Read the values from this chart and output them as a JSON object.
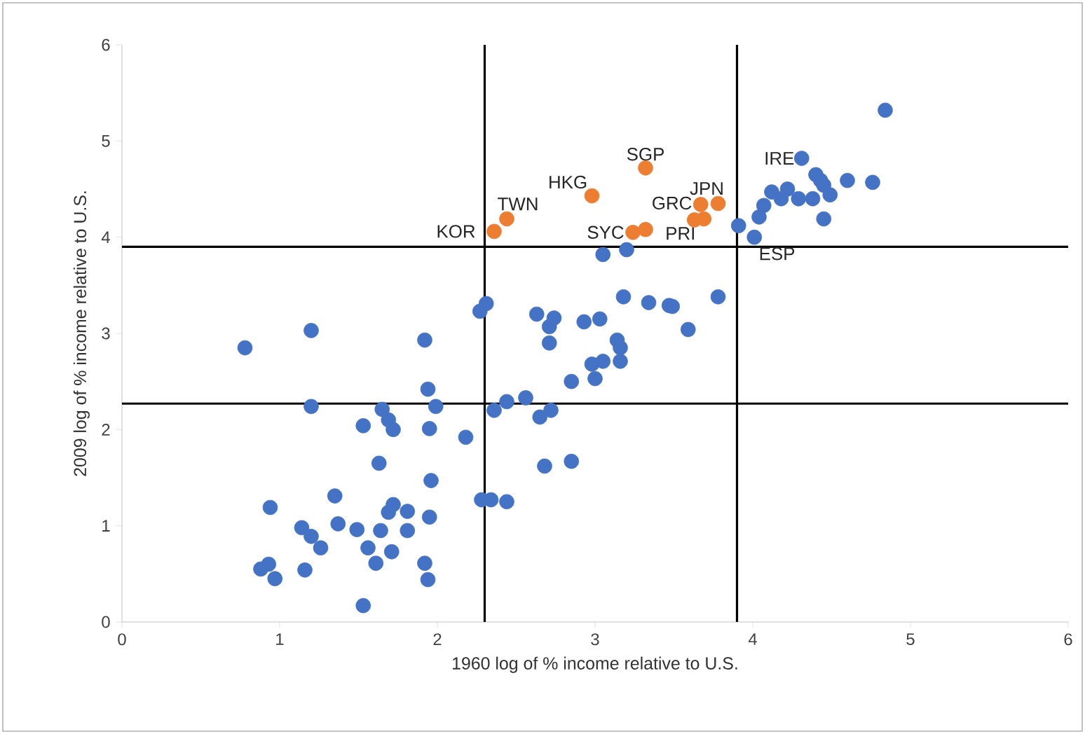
{
  "chart_data": {
    "type": "scatter",
    "xlabel": "1960 log of % income relative to U.S.",
    "ylabel": "2009 log of % income relative to U.S.",
    "xlim": [
      0,
      6
    ],
    "ylim": [
      0,
      6
    ],
    "xticks": [
      0,
      1,
      2,
      3,
      4,
      5,
      6
    ],
    "yticks": [
      0,
      1,
      2,
      3,
      4,
      5,
      6
    ],
    "marker": "circle",
    "series": [
      {
        "color": "#4472c4",
        "x": [
          4.84,
          4.31,
          4.4,
          4.43,
          4.45,
          4.49,
          4.6,
          4.76,
          4.12,
          4.22,
          4.18,
          4.07,
          4.04,
          3.91,
          4.01,
          4.45,
          4.29,
          4.38,
          3.05,
          3.2,
          3.18,
          3.34,
          3.47,
          3.49,
          3.78,
          3.59,
          2.27,
          2.31,
          2.63,
          2.74,
          2.71,
          2.71,
          2.93,
          3.03,
          3.14,
          3.16,
          3.16,
          2.98,
          3.05,
          3.0,
          2.85,
          2.44,
          2.36,
          2.56,
          2.65,
          2.72,
          2.68,
          2.85,
          2.18,
          2.28,
          2.34,
          2.44,
          0.78,
          1.2,
          1.92,
          1.94,
          1.99,
          1.2,
          1.65,
          1.53,
          1.69,
          1.72,
          1.95,
          1.63,
          1.96,
          0.94,
          1.35,
          1.37,
          1.14,
          1.2,
          1.26,
          1.49,
          1.64,
          1.72,
          1.69,
          1.81,
          1.95,
          1.81,
          1.56,
          1.71,
          1.61,
          1.92,
          1.94,
          1.16,
          0.88,
          0.93,
          0.97,
          1.53
        ],
        "values": [
          5.32,
          4.82,
          4.65,
          4.59,
          4.54,
          4.44,
          4.59,
          4.57,
          4.47,
          4.5,
          4.4,
          4.33,
          4.21,
          4.12,
          4.0,
          4.19,
          4.4,
          4.4,
          3.82,
          3.87,
          3.38,
          3.32,
          3.29,
          3.28,
          3.38,
          3.04,
          3.23,
          3.31,
          3.2,
          3.16,
          3.07,
          2.9,
          3.12,
          3.15,
          2.93,
          2.85,
          2.71,
          2.68,
          2.71,
          2.53,
          2.5,
          2.29,
          2.2,
          2.33,
          2.13,
          2.2,
          1.62,
          1.67,
          1.92,
          1.27,
          1.27,
          1.25,
          2.85,
          3.03,
          2.93,
          2.42,
          2.24,
          2.24,
          2.21,
          2.04,
          2.1,
          2.0,
          2.01,
          1.65,
          1.47,
          1.19,
          1.31,
          1.02,
          0.98,
          0.89,
          0.77,
          0.96,
          0.95,
          1.22,
          1.14,
          1.15,
          1.09,
          0.95,
          0.77,
          0.73,
          0.61,
          0.61,
          0.44,
          0.54,
          0.55,
          0.6,
          0.45,
          0.17
        ]
      },
      {
        "color": "#ed7d31",
        "x": [
          2.36,
          2.44,
          2.98,
          3.32,
          3.24,
          3.32,
          3.67,
          3.78,
          3.63,
          3.69
        ],
        "values": [
          4.06,
          4.19,
          4.43,
          4.72,
          4.05,
          4.08,
          4.34,
          4.35,
          4.18,
          4.19
        ]
      }
    ],
    "ref_lines": [
      {
        "axis": "x",
        "value": 2.3,
        "color": "#000000"
      },
      {
        "axis": "x",
        "value": 3.9,
        "color": "#000000"
      },
      {
        "axis": "y",
        "value": 3.9,
        "color": "#000000"
      },
      {
        "axis": "y",
        "value": 2.27,
        "color": "#000000"
      }
    ],
    "annotations": [
      {
        "text": "KOR",
        "x": 2.36,
        "y": 4.06
      },
      {
        "text": "TWN",
        "x": 2.44,
        "y": 4.19
      },
      {
        "text": "HKG",
        "x": 2.98,
        "y": 4.43
      },
      {
        "text": "SGP",
        "x": 3.32,
        "y": 4.72
      },
      {
        "text": "SYC",
        "x": 3.24,
        "y": 4.05
      },
      {
        "text": "JPN",
        "x": 3.78,
        "y": 4.35
      },
      {
        "text": "GRC",
        "x": 3.67,
        "y": 4.34
      },
      {
        "text": "PRI",
        "x": 3.63,
        "y": 4.18
      },
      {
        "text": "IRE",
        "x": 4.31,
        "y": 4.82
      },
      {
        "text": "ESP",
        "x": 4.01,
        "y": 4.0
      }
    ]
  }
}
